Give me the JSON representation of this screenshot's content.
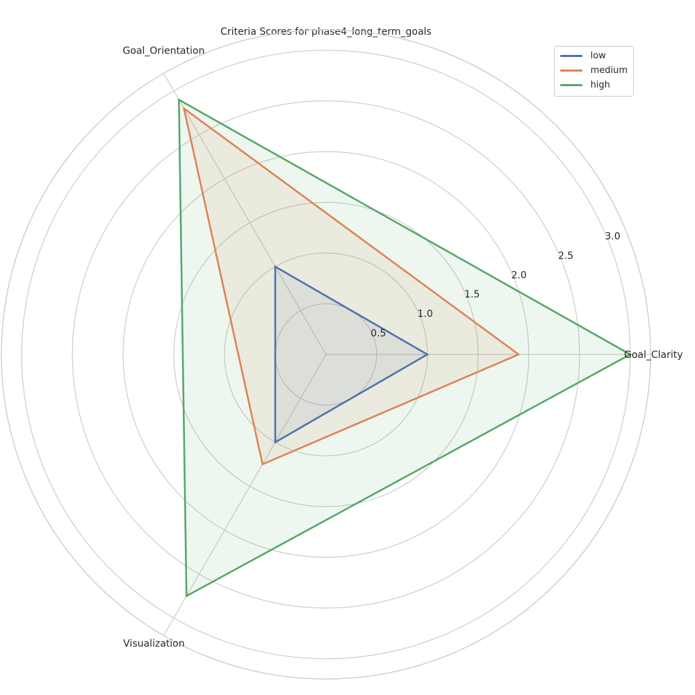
{
  "chart_data": {
    "type": "radar",
    "title": "Criteria Scores for phase4_long_term_goals",
    "axes": [
      "Goal_Clarity",
      "Goal_Orientation",
      "Visualization"
    ],
    "rlim": [
      0,
      3.2
    ],
    "radial_ticks": [
      0.5,
      1.0,
      1.5,
      2.0,
      2.5,
      3.0
    ],
    "radial_tick_labels": [
      "0.5",
      "1.0",
      "1.5",
      "2.0",
      "2.5",
      "3.0"
    ],
    "grid": true,
    "legend_position": "top-right",
    "series": [
      {
        "name": "low",
        "values": [
          1.0,
          1.0,
          1.0
        ],
        "color": "#4c72b0"
      },
      {
        "name": "medium",
        "values": [
          1.9,
          2.8,
          1.25
        ],
        "color": "#dd8452"
      },
      {
        "name": "high",
        "values": [
          3.0,
          2.9,
          2.75
        ],
        "color": "#55a868"
      }
    ]
  }
}
